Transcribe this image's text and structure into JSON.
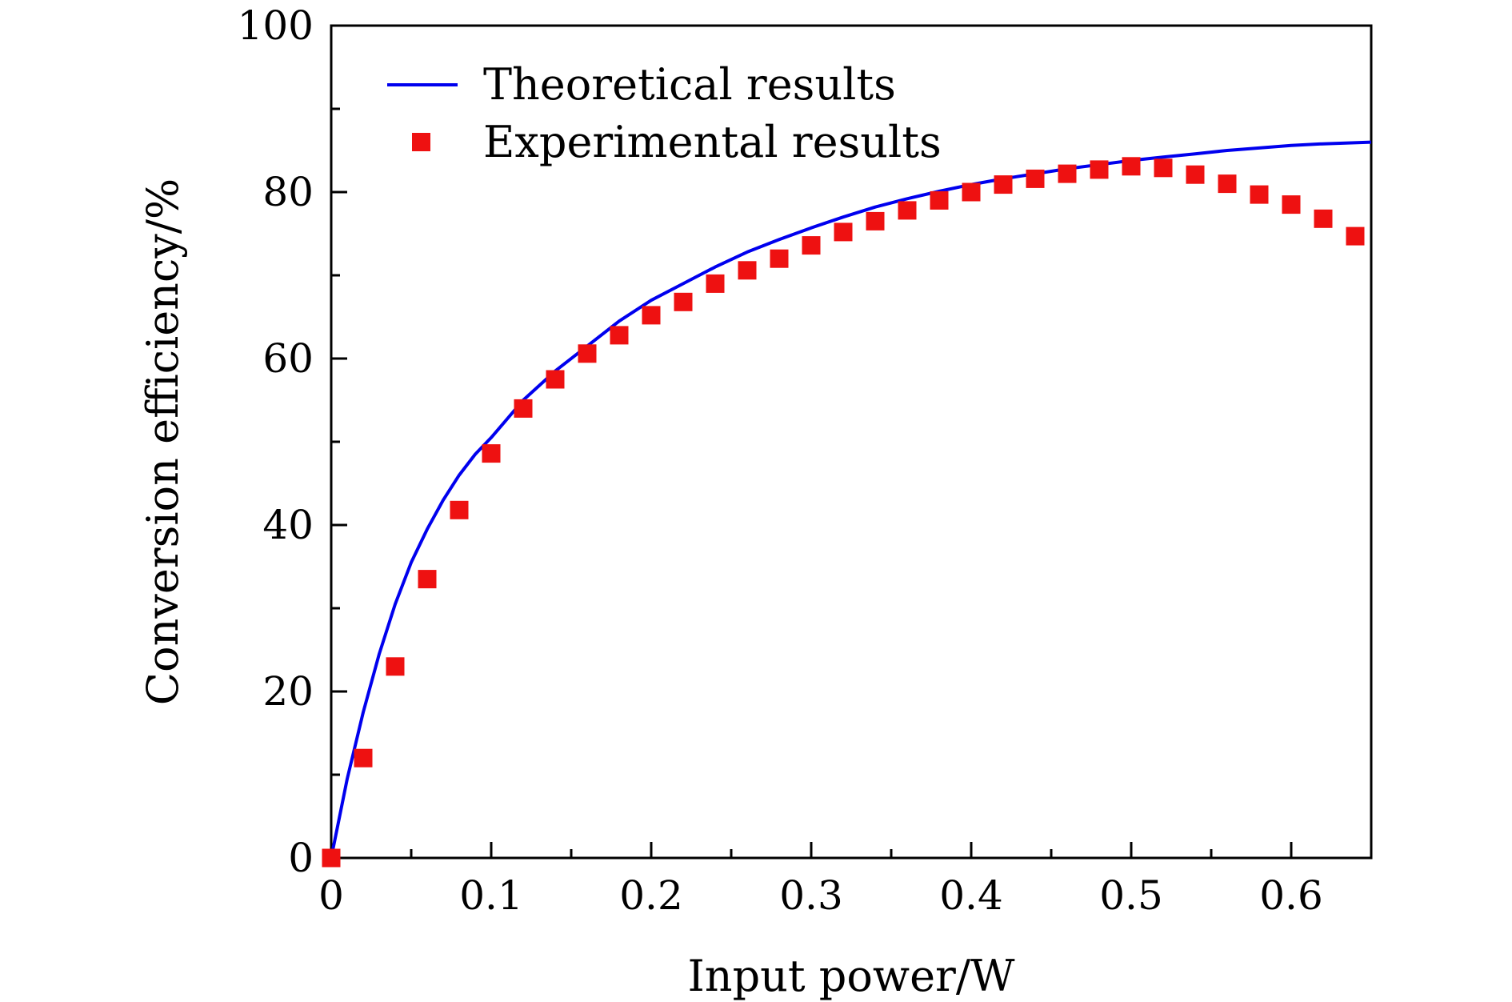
{
  "chart_data": {
    "type": "scatter",
    "title": "",
    "xlabel": "Input power/W",
    "ylabel": "Conversion efficiency/%",
    "xlim": [
      0,
      0.65
    ],
    "ylim": [
      0,
      100
    ],
    "xticks": [
      0,
      0.1,
      0.2,
      0.3,
      0.4,
      0.5,
      0.6
    ],
    "xtick_labels": [
      "0",
      "0.1",
      "0.2",
      "0.3",
      "0.4",
      "0.5",
      "0.6"
    ],
    "xminor": [
      0.05,
      0.15,
      0.25,
      0.35,
      0.45,
      0.55
    ],
    "yticks": [
      0,
      20,
      40,
      60,
      80,
      100
    ],
    "ytick_labels": [
      "0",
      "20",
      "40",
      "60",
      "80",
      "100"
    ],
    "yminor": [
      10,
      30,
      50,
      70,
      90
    ],
    "grid": false,
    "legend_position": "top-left",
    "series": [
      {
        "name": "Theoretical results",
        "kind": "line",
        "color": "#0000ee",
        "x": [
          0,
          0.01,
          0.02,
          0.03,
          0.04,
          0.05,
          0.06,
          0.07,
          0.08,
          0.09,
          0.1,
          0.12,
          0.14,
          0.16,
          0.18,
          0.2,
          0.22,
          0.24,
          0.26,
          0.28,
          0.3,
          0.32,
          0.34,
          0.36,
          0.38,
          0.4,
          0.42,
          0.44,
          0.46,
          0.48,
          0.5,
          0.52,
          0.54,
          0.56,
          0.58,
          0.6,
          0.62,
          0.65
        ],
        "y": [
          0,
          9.5,
          17.5,
          24.5,
          30.5,
          35.5,
          39.5,
          43,
          46,
          48.5,
          50.5,
          55,
          58.5,
          61.5,
          64.5,
          67,
          69,
          71,
          72.8,
          74.3,
          75.7,
          77,
          78.2,
          79.2,
          80.1,
          80.9,
          81.6,
          82.2,
          82.8,
          83.3,
          83.8,
          84.2,
          84.6,
          85,
          85.3,
          85.6,
          85.8,
          86
        ]
      },
      {
        "name": "Experimental results",
        "kind": "scatter",
        "color": "#ee1111",
        "marker": "square",
        "x": [
          0,
          0.02,
          0.04,
          0.06,
          0.08,
          0.1,
          0.12,
          0.14,
          0.16,
          0.18,
          0.2,
          0.22,
          0.24,
          0.26,
          0.28,
          0.3,
          0.32,
          0.34,
          0.36,
          0.38,
          0.4,
          0.42,
          0.44,
          0.46,
          0.48,
          0.5,
          0.52,
          0.54,
          0.56,
          0.58,
          0.6,
          0.62,
          0.64
        ],
        "y": [
          0,
          12,
          23,
          33.5,
          41.8,
          48.6,
          54,
          57.5,
          60.6,
          62.8,
          65.2,
          66.8,
          69,
          70.6,
          72,
          73.6,
          75.2,
          76.5,
          77.8,
          79,
          80,
          80.9,
          81.6,
          82.2,
          82.7,
          83.1,
          82.9,
          82.1,
          81,
          79.7,
          78.5,
          76.8,
          74.7
        ]
      }
    ]
  }
}
